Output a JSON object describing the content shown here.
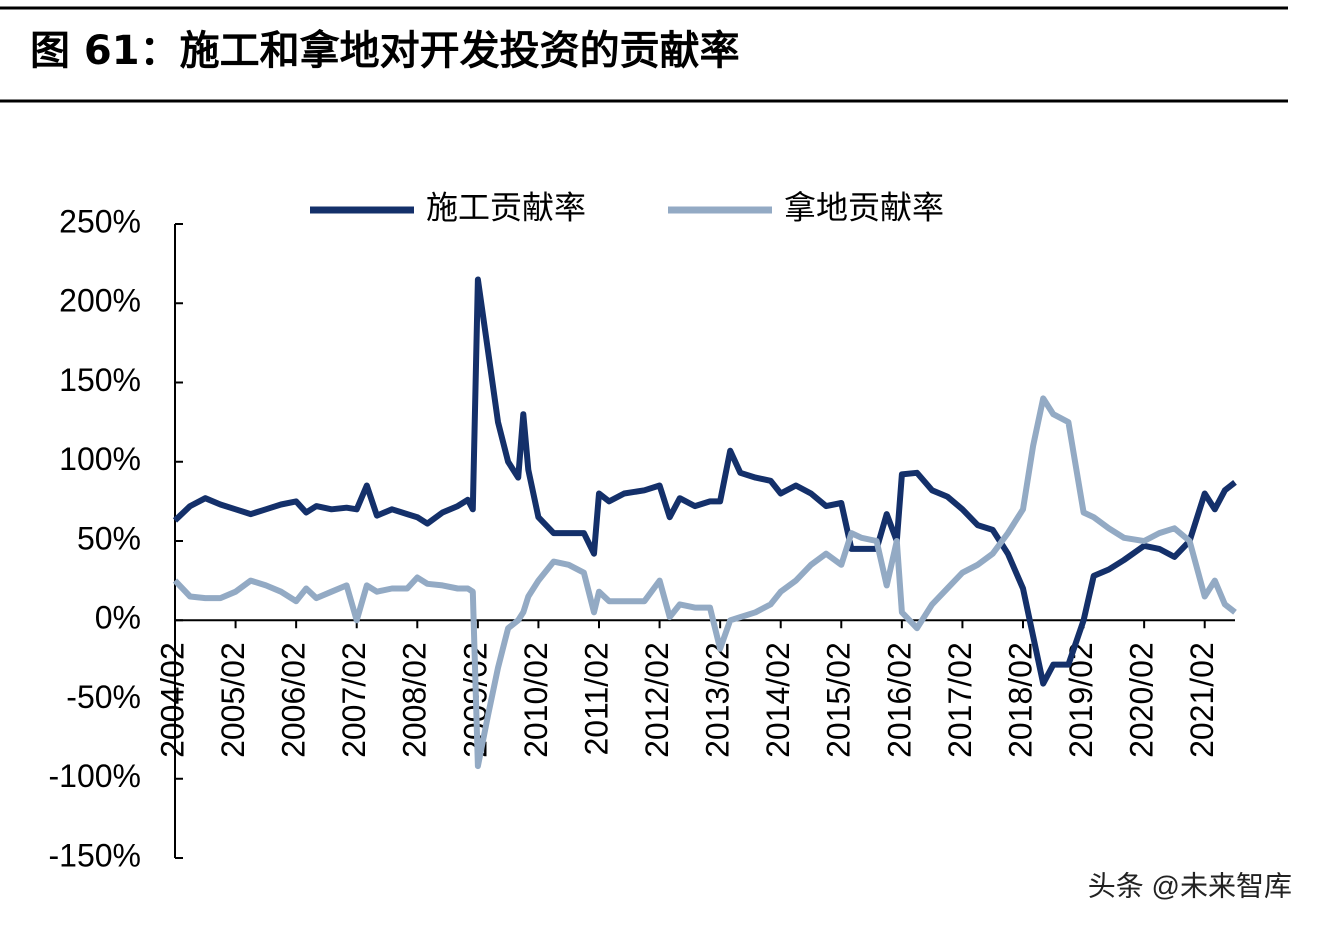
{
  "chart_data": {
    "type": "line",
    "title": "图 61：施工和拿地对开发投资的贡献率",
    "watermark": "头条 @未来智库",
    "x": [
      "2004/02",
      "2004/05",
      "2004/08",
      "2004/11",
      "2005/02",
      "2005/05",
      "2005/08",
      "2005/11",
      "2006/02",
      "2006/04",
      "2006/06",
      "2006/09",
      "2006/12",
      "2007/02",
      "2007/04",
      "2007/06",
      "2007/09",
      "2007/12",
      "2008/02",
      "2008/04",
      "2008/07",
      "2008/10",
      "2008/12",
      "2009/01",
      "2009/02",
      "2009/04",
      "2009/06",
      "2009/08",
      "2009/10",
      "2009/11",
      "2009/12",
      "2010/02",
      "2010/05",
      "2010/08",
      "2010/11",
      "2011/01",
      "2011/02",
      "2011/04",
      "2011/07",
      "2011/11",
      "2012/02",
      "2012/04",
      "2012/06",
      "2012/09",
      "2012/12",
      "2013/02",
      "2013/04",
      "2013/06",
      "2013/09",
      "2013/12",
      "2014/02",
      "2014/05",
      "2014/08",
      "2014/11",
      "2015/02",
      "2015/04",
      "2015/06",
      "2015/09",
      "2015/11",
      "2016/01",
      "2016/02",
      "2016/05",
      "2016/08",
      "2016/11",
      "2017/02",
      "2017/05",
      "2017/08",
      "2017/11",
      "2018/02",
      "2018/04",
      "2018/06",
      "2018/08",
      "2018/11",
      "2019/02",
      "2019/04",
      "2019/07",
      "2019/10",
      "2020/02",
      "2020/05",
      "2020/08",
      "2020/11",
      "2021/02",
      "2021/04",
      "2021/06",
      "2021/08"
    ],
    "series": [
      {
        "name": "施工贡献率",
        "color": "#14306a",
        "values": [
          63,
          72,
          77,
          73,
          70,
          67,
          70,
          73,
          75,
          68,
          72,
          70,
          71,
          70,
          85,
          66,
          70,
          67,
          65,
          61,
          68,
          72,
          76,
          70,
          215,
          170,
          125,
          100,
          90,
          130,
          95,
          65,
          55,
          55,
          55,
          42,
          80,
          75,
          80,
          82,
          85,
          65,
          77,
          72,
          75,
          75,
          107,
          93,
          90,
          88,
          80,
          85,
          80,
          72,
          74,
          45,
          45,
          45,
          67,
          50,
          92,
          93,
          82,
          78,
          70,
          60,
          57,
          42,
          20,
          -10,
          -40,
          -28,
          -28,
          0,
          28,
          32,
          38,
          47,
          45,
          40,
          50,
          80,
          70,
          82,
          87
        ]
      },
      {
        "name": "拿地贡献率",
        "color": "#93aac4",
        "values": [
          25,
          15,
          14,
          14,
          18,
          25,
          22,
          18,
          12,
          20,
          14,
          18,
          22,
          0,
          22,
          18,
          20,
          20,
          27,
          23,
          22,
          20,
          20,
          18,
          -92,
          -60,
          -30,
          -5,
          0,
          5,
          15,
          25,
          37,
          35,
          30,
          5,
          18,
          12,
          12,
          12,
          25,
          2,
          10,
          8,
          8,
          -18,
          0,
          2,
          5,
          10,
          18,
          25,
          35,
          42,
          35,
          55,
          52,
          50,
          22,
          50,
          5,
          -5,
          10,
          20,
          30,
          35,
          42,
          55,
          70,
          110,
          140,
          130,
          125,
          68,
          65,
          58,
          52,
          50,
          55,
          58,
          50,
          15,
          25,
          10,
          5
        ]
      }
    ],
    "xlim": [
      "2004/02",
      "2021/08"
    ],
    "xticks": [
      "2004/02",
      "2005/02",
      "2006/02",
      "2007/02",
      "2008/02",
      "2009/02",
      "2010/02",
      "2011/02",
      "2012/02",
      "2013/02",
      "2014/02",
      "2015/02",
      "2016/02",
      "2017/02",
      "2018/02",
      "2019/02",
      "2020/02",
      "2021/02"
    ],
    "ylim": [
      -150,
      250
    ],
    "yticks": [
      {
        "value": -150,
        "label": "-150%"
      },
      {
        "value": -100,
        "label": "-100%"
      },
      {
        "value": -50,
        "label": "-50%"
      },
      {
        "value": 0,
        "label": "0%"
      },
      {
        "value": 50,
        "label": "50%"
      },
      {
        "value": 100,
        "label": "100%"
      },
      {
        "value": 150,
        "label": "150%"
      },
      {
        "value": 200,
        "label": "200%"
      },
      {
        "value": 250,
        "label": "250%"
      }
    ]
  }
}
